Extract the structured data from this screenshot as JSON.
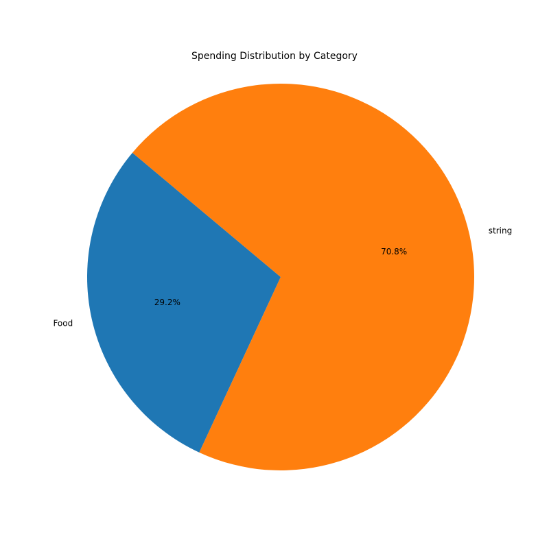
{
  "chart_data": {
    "type": "pie",
    "title": "Spending Distribution by Category",
    "slices": [
      {
        "label": "Food",
        "value": 29.2,
        "pct_label": "29.2%",
        "color": "#1f77b4"
      },
      {
        "label": "string",
        "value": 70.8,
        "pct_label": "70.8%",
        "color": "#ff7f0e"
      }
    ],
    "start_angle_deg": 140,
    "direction": "counterclockwise"
  }
}
